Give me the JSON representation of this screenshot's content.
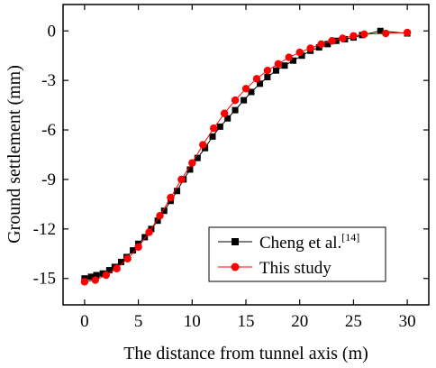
{
  "chart_data": {
    "type": "line",
    "xlabel": "The distance from tunnel axis (m)",
    "ylabel": "Ground settlement (mm)",
    "xlim": [
      -2,
      32
    ],
    "ylim": [
      -16.6,
      1.6
    ],
    "xticks": [
      0,
      5,
      10,
      15,
      20,
      25,
      30
    ],
    "yticks": [
      0,
      -3,
      -6,
      -9,
      -12,
      -15
    ],
    "xtick_labels": [
      "0",
      "5",
      "10",
      "15",
      "20",
      "25",
      "30"
    ],
    "ytick_labels": [
      "0",
      "-3",
      "-6",
      "-9",
      "-12",
      "-15"
    ],
    "grid": false,
    "legend_position": "lower-right",
    "series": [
      {
        "name": "Cheng et al.",
        "name_superscript": "[14]",
        "color": "#000000",
        "marker": "square",
        "x": [
          0,
          0.6,
          1.1,
          1.7,
          2.3,
          2.8,
          3.4,
          3.9,
          4.5,
          5.0,
          5.6,
          6.2,
          6.8,
          7.4,
          8.0,
          8.6,
          9.2,
          9.8,
          10.5,
          11.2,
          11.9,
          12.6,
          13.3,
          14.0,
          14.8,
          15.5,
          16.3,
          17.0,
          17.8,
          18.6,
          19.4,
          20.2,
          21.0,
          21.8,
          22.6,
          23.4,
          24.2,
          25.0,
          25.8,
          27.5,
          30.0
        ],
        "y": [
          -15.0,
          -14.9,
          -14.8,
          -14.7,
          -14.5,
          -14.3,
          -14.0,
          -13.7,
          -13.3,
          -12.9,
          -12.5,
          -12.0,
          -11.5,
          -10.9,
          -10.3,
          -9.7,
          -9.0,
          -8.4,
          -7.7,
          -7.1,
          -6.4,
          -5.8,
          -5.3,
          -4.8,
          -4.2,
          -3.7,
          -3.2,
          -2.8,
          -2.4,
          -2.1,
          -1.8,
          -1.5,
          -1.2,
          -1.0,
          -0.8,
          -0.6,
          -0.5,
          -0.4,
          -0.25,
          0.0,
          -0.15
        ]
      },
      {
        "name": "This study",
        "color": "#ff0000",
        "marker": "circle",
        "x": [
          0,
          1,
          2,
          3,
          4,
          5,
          6,
          7,
          8,
          9,
          10,
          11,
          12,
          13,
          14,
          15,
          16,
          17,
          18,
          19,
          20,
          21,
          22,
          23,
          24,
          25,
          26,
          28,
          30
        ],
        "y": [
          -15.2,
          -15.1,
          -14.8,
          -14.4,
          -13.8,
          -13.1,
          -12.2,
          -11.2,
          -10.1,
          -9.0,
          -8.0,
          -6.9,
          -5.9,
          -5.0,
          -4.2,
          -3.5,
          -2.9,
          -2.4,
          -2.0,
          -1.6,
          -1.3,
          -1.05,
          -0.8,
          -0.6,
          -0.45,
          -0.3,
          -0.2,
          -0.15,
          -0.1
        ]
      }
    ]
  }
}
